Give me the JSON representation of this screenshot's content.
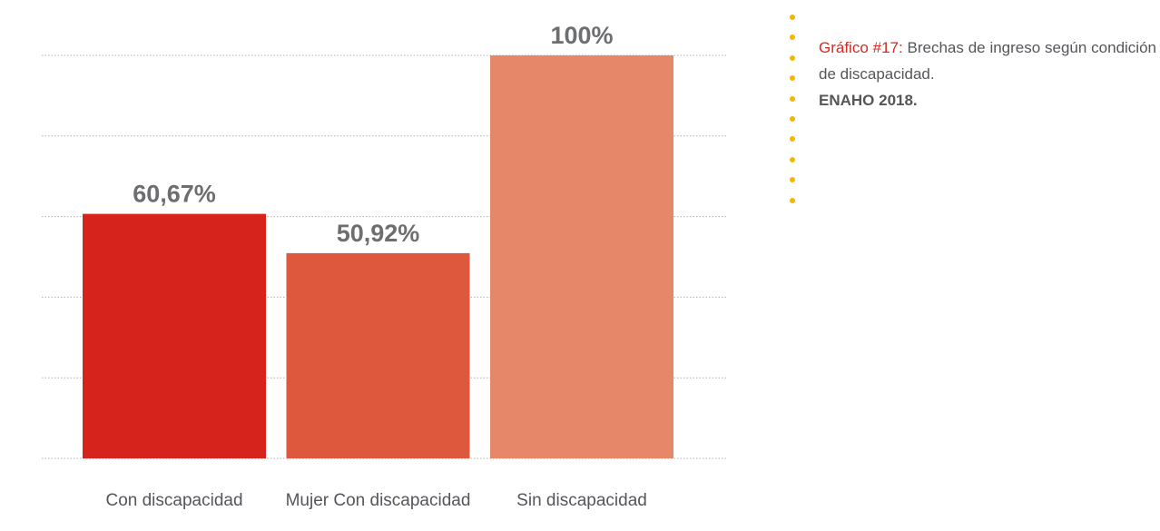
{
  "chart_data": {
    "type": "bar",
    "categories": [
      "Con discapacidad",
      "Mujer Con discapacidad",
      "Sin discapacidad"
    ],
    "values": [
      60.67,
      50.92,
      100
    ],
    "data_labels": [
      "60,67%",
      "50,92%",
      "100%"
    ],
    "colors": [
      "#d6241d",
      "#dd583d",
      "#e7876a"
    ],
    "ylim": [
      0,
      100
    ],
    "grid": true,
    "title": "",
    "xlabel": "",
    "ylabel": ""
  },
  "caption": {
    "label": "Gráfico #17:",
    "text": " Brechas de ingreso según condición de discapacidad.",
    "source": "ENAHO 2018."
  },
  "colors": {
    "accent_red": "#d42a1f",
    "dot_yellow": "#f2b705",
    "text_gray": "#55565a",
    "grid": "#b0b0b0"
  }
}
